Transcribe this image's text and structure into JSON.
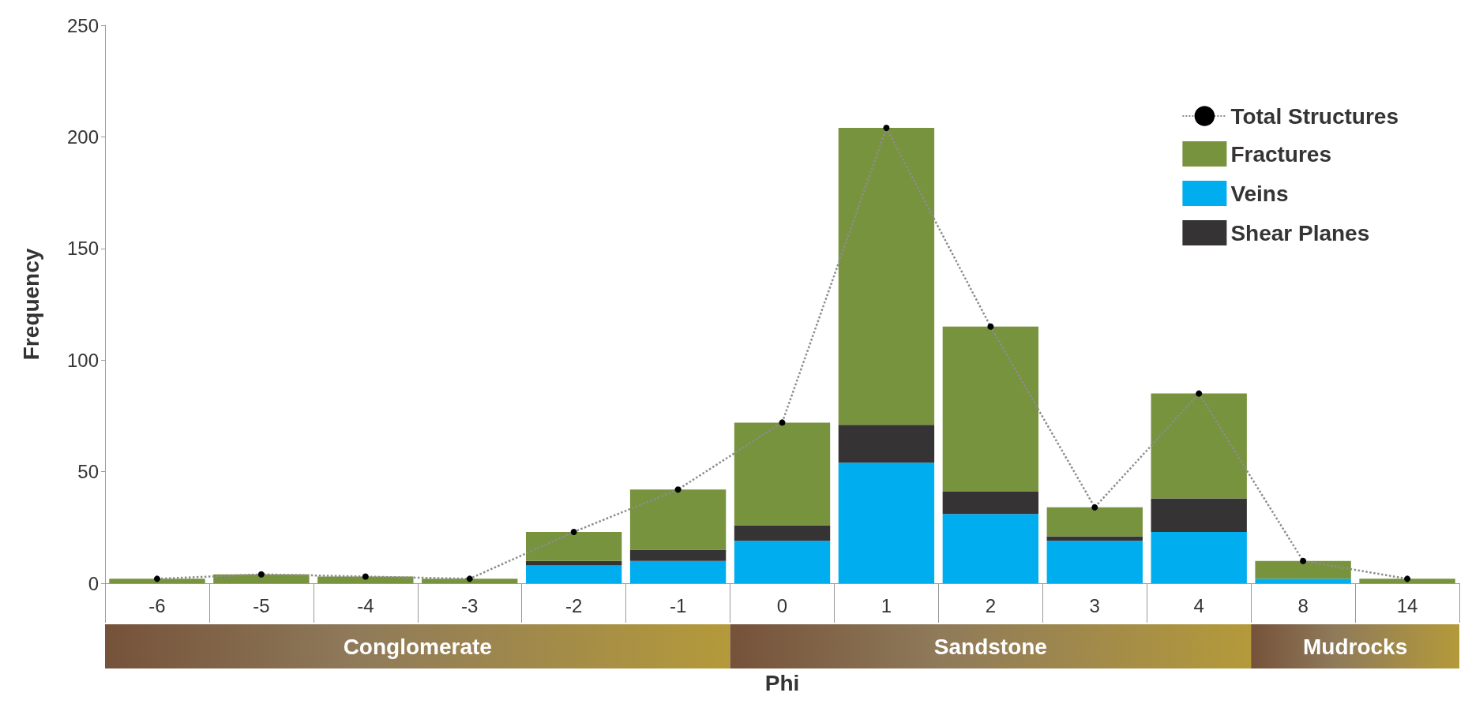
{
  "chart_data": {
    "type": "bar",
    "xlabel": "Phi",
    "ylabel": "Frequency",
    "categories": [
      "-6",
      "-5",
      "-4",
      "-3",
      "-2",
      "-1",
      "0",
      "1",
      "2",
      "3",
      "4",
      "8",
      "14"
    ],
    "stacked": true,
    "series": [
      {
        "name": "Veins",
        "color": "#00aeef",
        "values": [
          0,
          0,
          0,
          0,
          8,
          10,
          19,
          54,
          31,
          19,
          23,
          2,
          0
        ]
      },
      {
        "name": "Shear Planes",
        "color": "#353334",
        "values": [
          0,
          0,
          0,
          0,
          2,
          5,
          7,
          17,
          10,
          2,
          15,
          0,
          0
        ]
      },
      {
        "name": "Fractures",
        "color": "#78933d",
        "values": [
          2,
          4,
          3,
          2,
          13,
          27,
          46,
          133,
          74,
          13,
          47,
          8,
          2
        ]
      },
      {
        "name": "Total Structures",
        "type": "line",
        "color": "#8c8c8c",
        "marker": "circle",
        "line_style": "dotted",
        "values": [
          2,
          4,
          3,
          2,
          23,
          42,
          72,
          204,
          115,
          34,
          85,
          10,
          2
        ]
      }
    ],
    "ylim": [
      0,
      250
    ],
    "yticks": [
      0,
      50,
      100,
      150,
      200,
      250
    ],
    "grid": false,
    "legend": "top right",
    "annotations": [
      "Conglomerate",
      "Sandstone",
      "Mudrocks"
    ]
  }
}
